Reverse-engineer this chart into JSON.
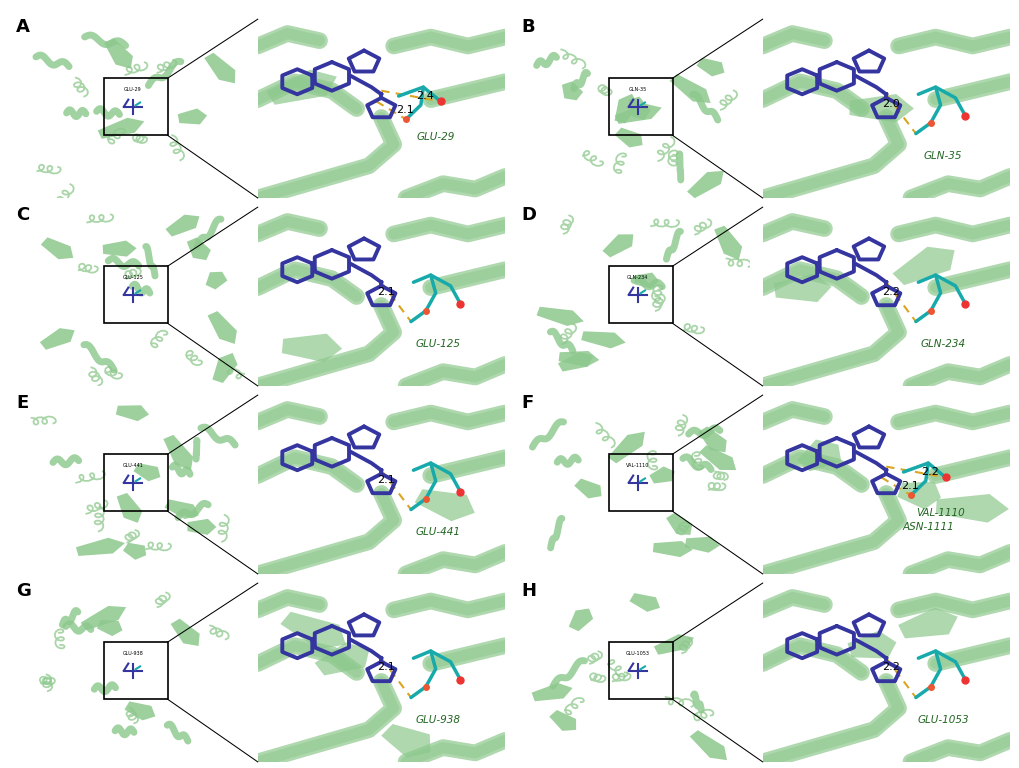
{
  "panels": [
    {
      "label": "A",
      "residue": "GLU-29",
      "distances": [
        "2.4",
        "2.1"
      ],
      "bond_color": "#DAA520",
      "protein_seed": 42,
      "zoom_seed": 142
    },
    {
      "label": "B",
      "residue": "GLN-35",
      "distances": [
        "2.0"
      ],
      "bond_color": "#DAA520",
      "protein_seed": 7,
      "zoom_seed": 107
    },
    {
      "label": "C",
      "residue": "GLU-125",
      "distances": [
        "2.1"
      ],
      "bond_color": "#DAA520",
      "protein_seed": 13,
      "zoom_seed": 113
    },
    {
      "label": "D",
      "residue": "GLN-234",
      "distances": [
        "2.2"
      ],
      "bond_color": "#DAA520",
      "protein_seed": 22,
      "zoom_seed": 222
    },
    {
      "label": "E",
      "residue": "GLU-441",
      "distances": [
        "2.1"
      ],
      "bond_color": "#DAA520",
      "protein_seed": 55,
      "zoom_seed": 155
    },
    {
      "label": "F",
      "residue": "VAL-1110",
      "residue2": "ASN-1111",
      "distances": [
        "2.2",
        "2.1"
      ],
      "bond_color": "#DAA520",
      "protein_seed": 66,
      "zoom_seed": 166
    },
    {
      "label": "G",
      "residue": "GLU-938",
      "distances": [
        "2.1"
      ],
      "bond_color": "#DAA520",
      "protein_seed": 77,
      "zoom_seed": 177
    },
    {
      "label": "H",
      "residue": "GLU-1053",
      "distances": [
        "2.2"
      ],
      "bond_color": "#DAA520",
      "protein_seed": 88,
      "zoom_seed": 188
    }
  ],
  "bg_color": "#ffffff",
  "ribbon_green": "#8DC88D",
  "ribbon_edge": "#6aab6a",
  "ligand_blue": "#3535A0",
  "residue_cyan": "#18AAAA",
  "oxygen_red": "#EE3333",
  "nitrogen_blue": "#4444CC",
  "label_fontsize": 13,
  "figure_width": 10.2,
  "figure_height": 7.68
}
